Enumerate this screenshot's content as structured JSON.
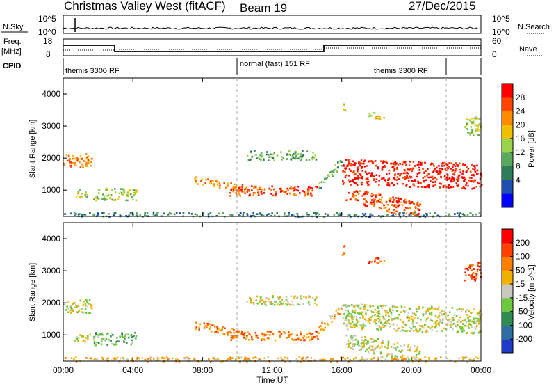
{
  "header": {
    "title": "Christmas Valley West (fitACF)",
    "beam": "Beam 19",
    "date": "27/Dec/2015"
  },
  "panels": {
    "nsky_label": "N.Sky",
    "nsky_ticks": [
      "10^5",
      "10^0"
    ],
    "nsearch_label": "N.Search",
    "nsearch_ticks": [
      "10^5",
      "10^0"
    ],
    "freq_label": "Freq.",
    "freq_unit": "[MHz]",
    "freq_ticks": [
      "18",
      "8"
    ],
    "nave_label": "Nave",
    "nave_ticks": [
      "60",
      "0"
    ],
    "cpid_label": "CPID",
    "cpid_segments": [
      "themis 3300 RF",
      "normal (fast) 151 RF",
      "themis 3300 RF"
    ]
  },
  "chart_data": [
    {
      "type": "heatmap",
      "quantity": "Power",
      "ylabel": "Slant Range [km]",
      "ylim": [
        180,
        4500
      ],
      "yticks": [
        "1000",
        "2000",
        "3000",
        "4000"
      ],
      "colorbar_label": "Power [dB]",
      "colorbar_ticks": [
        "28",
        "24",
        "20",
        "16",
        "12",
        "8",
        "4"
      ],
      "colors": [
        "#0000ff",
        "#1e4fb0",
        "#2e7d5a",
        "#5aa85a",
        "#9ad24a",
        "#f0c000",
        "#ff8c00",
        "#ff4500",
        "#ff0000"
      ]
    },
    {
      "type": "heatmap",
      "quantity": "Velocity",
      "ylabel": "Slant Range [km]",
      "ylim": [
        180,
        4500
      ],
      "yticks": [
        "1000",
        "2000",
        "3000",
        "4000"
      ],
      "colorbar_label": "Velocity [m s^-1]",
      "colorbar_ticks": [
        "200",
        "100",
        "50",
        "15",
        "-15",
        "-50",
        "-100",
        "-200"
      ],
      "colors": [
        "#1e3cc8",
        "#2e6ea0",
        "#2e8c50",
        "#6cc83c",
        "#c8c8c0",
        "#f0b000",
        "#ff8000",
        "#ff4000",
        "#ff0000"
      ]
    }
  ],
  "xaxis": {
    "ticks": [
      "00:00",
      "04:00",
      "08:00",
      "12:00",
      "16:00",
      "20:00",
      "00:00"
    ],
    "label": "Time UT"
  }
}
